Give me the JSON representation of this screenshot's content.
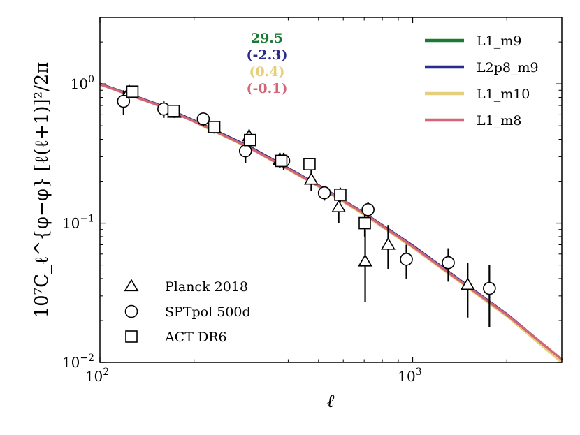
{
  "chart_data": {
    "type": "scatter",
    "xscale": "log",
    "yscale": "log",
    "xlim": [
      100,
      3000
    ],
    "ylim": [
      0.01,
      3.0
    ],
    "xlabel": "ℓ",
    "ylabel": "10⁷C_ℓ^{φ−φ} [ℓ(ℓ+1)]²/2π",
    "xticks": [
      {
        "value": 100,
        "base": "10",
        "exp": "2"
      },
      {
        "value": 1000,
        "base": "10",
        "exp": "3"
      }
    ],
    "yticks": [
      {
        "value": 0.01,
        "base": "10",
        "exp": "−2"
      },
      {
        "value": 0.1,
        "base": "10",
        "exp": "−1"
      },
      {
        "value": 1.0,
        "base": "10",
        "exp": "0"
      }
    ],
    "model_curves": [
      {
        "name": "L1_m9",
        "color": "#1a7a33",
        "points": [
          [
            100,
            1.0
          ],
          [
            150,
            0.72
          ],
          [
            200,
            0.54
          ],
          [
            300,
            0.35
          ],
          [
            400,
            0.245
          ],
          [
            500,
            0.185
          ],
          [
            700,
            0.117
          ],
          [
            1000,
            0.068
          ],
          [
            1500,
            0.035
          ],
          [
            2000,
            0.022
          ],
          [
            3000,
            0.0103
          ]
        ]
      },
      {
        "name": "L2p8_m9",
        "color": "#2b2a8c",
        "points": [
          [
            100,
            1.0
          ],
          [
            150,
            0.725
          ],
          [
            200,
            0.545
          ],
          [
            300,
            0.355
          ],
          [
            400,
            0.248
          ],
          [
            500,
            0.187
          ],
          [
            700,
            0.118
          ],
          [
            1000,
            0.069
          ],
          [
            1500,
            0.0355
          ],
          [
            2000,
            0.0222
          ],
          [
            3000,
            0.0104
          ]
        ]
      },
      {
        "name": "L1_m10",
        "color": "#e6cf7a",
        "points": [
          [
            100,
            0.99
          ],
          [
            150,
            0.715
          ],
          [
            200,
            0.535
          ],
          [
            300,
            0.347
          ],
          [
            400,
            0.243
          ],
          [
            500,
            0.183
          ],
          [
            700,
            0.115
          ],
          [
            1000,
            0.067
          ],
          [
            1500,
            0.0345
          ],
          [
            2000,
            0.0215
          ],
          [
            3000,
            0.01
          ]
        ]
      },
      {
        "name": "L1_m8",
        "color": "#d26674",
        "points": [
          [
            100,
            0.995
          ],
          [
            150,
            0.718
          ],
          [
            200,
            0.538
          ],
          [
            300,
            0.35
          ],
          [
            400,
            0.245
          ],
          [
            500,
            0.185
          ],
          [
            700,
            0.117
          ],
          [
            1000,
            0.068
          ],
          [
            1500,
            0.035
          ],
          [
            2000,
            0.022
          ],
          [
            3000,
            0.0105
          ]
        ]
      }
    ],
    "datasets": [
      {
        "name": "Planck 2018",
        "marker": "triangle",
        "points": [
          {
            "x": 124,
            "y": 0.88,
            "lo": 0.8,
            "hi": 0.97
          },
          {
            "x": 173,
            "y": 0.62,
            "lo": 0.57,
            "hi": 0.67
          },
          {
            "x": 232,
            "y": 0.48,
            "lo": 0.44,
            "hi": 0.52
          },
          {
            "x": 300,
            "y": 0.42,
            "lo": 0.37,
            "hi": 0.47
          },
          {
            "x": 376,
            "y": 0.285,
            "lo": 0.25,
            "hi": 0.32
          },
          {
            "x": 474,
            "y": 0.205,
            "lo": 0.17,
            "hi": 0.24
          },
          {
            "x": 580,
            "y": 0.13,
            "lo": 0.1,
            "hi": 0.165
          },
          {
            "x": 705,
            "y": 0.053,
            "lo": 0.027,
            "hi": 0.09
          },
          {
            "x": 835,
            "y": 0.07,
            "lo": 0.047,
            "hi": 0.097
          },
          {
            "x": 1500,
            "y": 0.036,
            "lo": 0.021,
            "hi": 0.052
          }
        ]
      },
      {
        "name": "SPTpol 500d",
        "marker": "circle",
        "points": [
          {
            "x": 119,
            "y": 0.75,
            "lo": 0.6,
            "hi": 0.9
          },
          {
            "x": 160,
            "y": 0.66,
            "lo": 0.57,
            "hi": 0.75
          },
          {
            "x": 214,
            "y": 0.56,
            "lo": 0.5,
            "hi": 0.62
          },
          {
            "x": 292,
            "y": 0.33,
            "lo": 0.27,
            "hi": 0.39
          },
          {
            "x": 387,
            "y": 0.28,
            "lo": 0.24,
            "hi": 0.32
          },
          {
            "x": 522,
            "y": 0.165,
            "lo": 0.145,
            "hi": 0.185
          },
          {
            "x": 720,
            "y": 0.125,
            "lo": 0.108,
            "hi": 0.142
          },
          {
            "x": 955,
            "y": 0.055,
            "lo": 0.04,
            "hi": 0.07
          },
          {
            "x": 1300,
            "y": 0.052,
            "lo": 0.038,
            "hi": 0.066
          },
          {
            "x": 1760,
            "y": 0.034,
            "lo": 0.018,
            "hi": 0.05
          }
        ]
      },
      {
        "name": "ACT DR6",
        "marker": "square",
        "points": [
          {
            "x": 127,
            "y": 0.88,
            "lo": 0.83,
            "hi": 0.93
          },
          {
            "x": 172,
            "y": 0.64,
            "lo": 0.6,
            "hi": 0.68
          },
          {
            "x": 232,
            "y": 0.49,
            "lo": 0.46,
            "hi": 0.52
          },
          {
            "x": 302,
            "y": 0.395,
            "lo": 0.36,
            "hi": 0.43
          },
          {
            "x": 380,
            "y": 0.28,
            "lo": 0.26,
            "hi": 0.3
          },
          {
            "x": 468,
            "y": 0.265,
            "lo": 0.24,
            "hi": 0.29
          },
          {
            "x": 587,
            "y": 0.16,
            "lo": 0.14,
            "hi": 0.18
          },
          {
            "x": 703,
            "y": 0.1,
            "lo": 0.08,
            "hi": 0.12
          }
        ]
      }
    ],
    "annotations": [
      {
        "text": "29.5",
        "color": "#1a7a33"
      },
      {
        "text": "(-2.3)",
        "color": "#2b2a8c"
      },
      {
        "text": "(0.4)",
        "color": "#e6cf7a"
      },
      {
        "text": "(-0.1)",
        "color": "#d26674"
      }
    ],
    "legend_models_position": "top-right",
    "legend_data_position": "bottom-left"
  }
}
